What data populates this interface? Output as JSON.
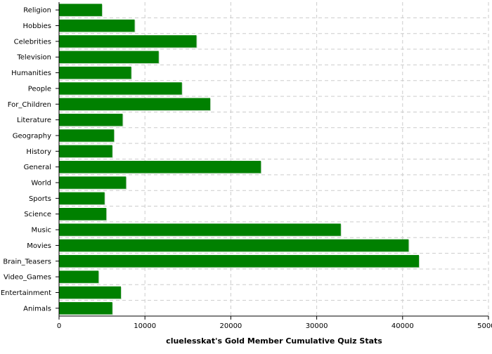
{
  "chart_data": {
    "type": "bar",
    "orientation": "horizontal",
    "title": "",
    "xlabel": "cluelesskat's Gold Member Cumulative Quiz Stats",
    "ylabel": "",
    "xlim": [
      0,
      50000
    ],
    "x_ticks": [
      0,
      10000,
      20000,
      30000,
      40000,
      50000
    ],
    "x_tick_labels": [
      "0",
      "10000",
      "20000",
      "30000",
      "40000",
      "50000"
    ],
    "grid": true,
    "bar_color": "#008000",
    "categories": [
      "Religion",
      "Hobbies",
      "Celebrities",
      "Television",
      "Humanities",
      "People",
      "For_Children",
      "Literature",
      "Geography",
      "History",
      "General",
      "World",
      "Sports",
      "Science",
      "Music",
      "Movies",
      "Brain_Teasers",
      "Video_Games",
      "Entertainment",
      "Animals"
    ],
    "values": [
      5000,
      8800,
      16000,
      11600,
      8400,
      14300,
      17600,
      7400,
      6400,
      6200,
      23500,
      7800,
      5300,
      5500,
      32800,
      40700,
      41900,
      4600,
      7200,
      6200
    ]
  }
}
